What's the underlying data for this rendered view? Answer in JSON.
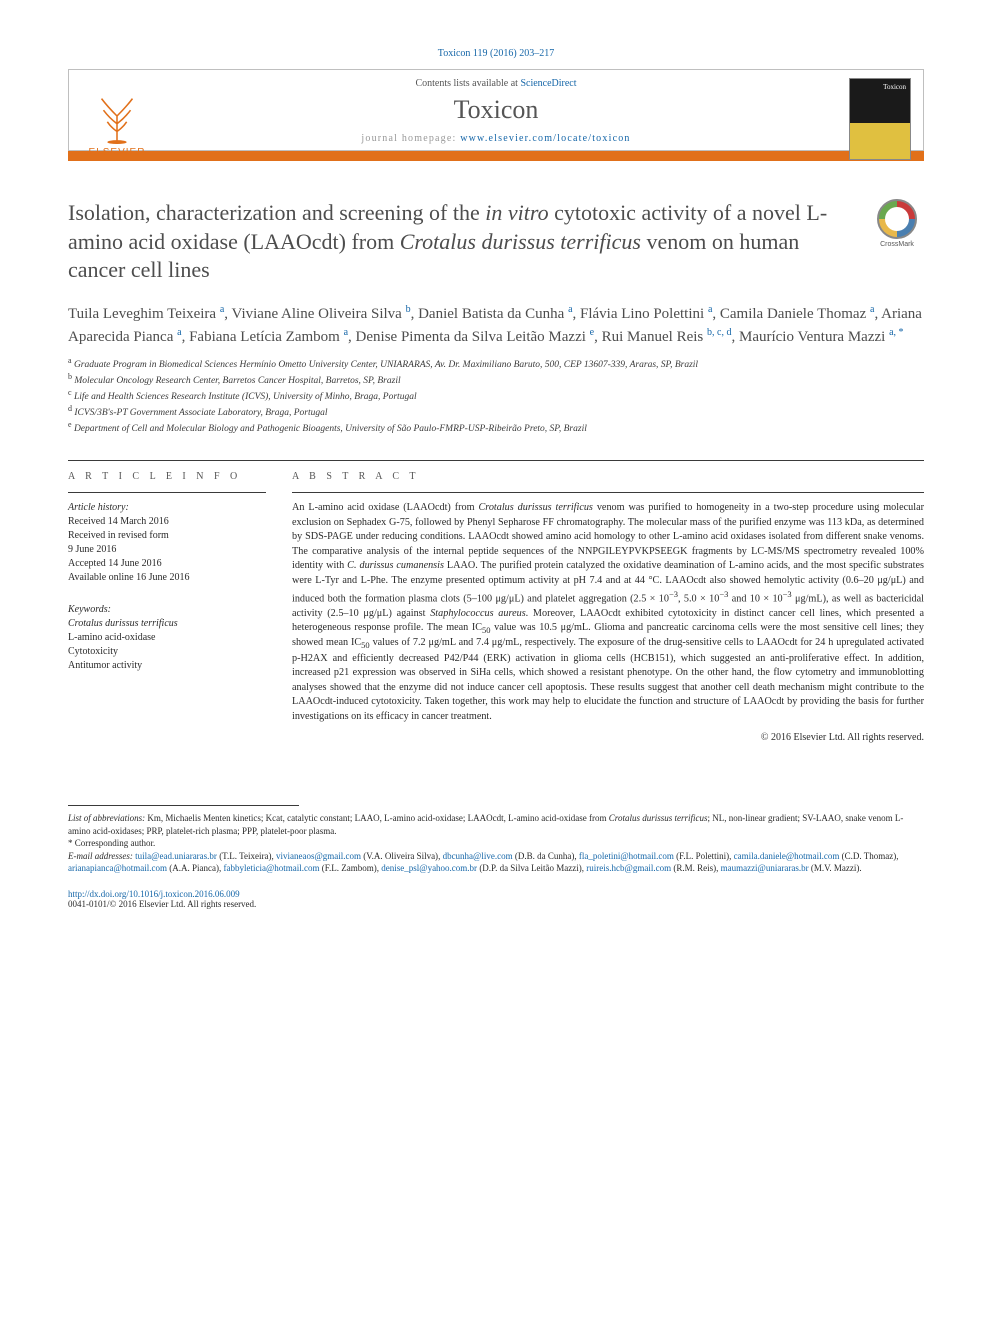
{
  "citation": "Toxicon 119 (2016) 203–217",
  "header": {
    "contents": "Contents lists available at ",
    "contents_link": "ScienceDirect",
    "journal": "Toxicon",
    "homepage_label": "journal homepage: ",
    "homepage_url": "www.elsevier.com/locate/toxicon",
    "publisher": "ELSEVIER",
    "cover_label": "Toxicon"
  },
  "crossmark_label": "CrossMark",
  "title_html": "Isolation, characterization and screening of the <span class='ital'>in vitro</span> cytotoxic activity of a novel L-amino acid oxidase (LAAOcdt) from <span class='ital'>Crotalus durissus terrificus</span> venom on human cancer cell lines",
  "authors_html": "Tuila Leveghim Teixeira <sup>a</sup>, Viviane Aline Oliveira Silva <sup>b</sup>, Daniel Batista da Cunha <sup>a</sup>, Flávia Lino Polettini <sup>a</sup>, Camila Daniele Thomaz <sup>a</sup>, Ariana Aparecida Pianca <sup>a</sup>, Fabiana Letícia Zambom <sup>a</sup>, Denise Pimenta da Silva Leitão Mazzi <sup>e</sup>, Rui Manuel Reis <sup>b, c, d</sup>, Maurício Ventura Mazzi <sup>a, *</sup>",
  "affiliations": [
    "<sup>a</sup> Graduate Program in Biomedical Sciences Hermínio Ometto University Center, UNIARARAS, Av. Dr. Maximiliano Baruto, 500, CEP 13607-339, Araras, SP, Brazil",
    "<sup>b</sup> Molecular Oncology Research Center, Barretos Cancer Hospital, Barretos, SP, Brazil",
    "<sup>c</sup> Life and Health Sciences Research Institute (ICVS), University of Minho, Braga, Portugal",
    "<sup>d</sup> ICVS/3B's-PT Government Associate Laboratory, Braga, Portugal",
    "<sup>e</sup> Department of Cell and Molecular Biology and Pathogenic Bioagents, University of São Paulo-FMRP-USP-Ribeirão Preto, SP, Brazil"
  ],
  "article_info": {
    "heading": "A R T I C L E   I N F O",
    "history_label": "Article history:",
    "history": [
      "Received 14 March 2016",
      "Received in revised form",
      "9 June 2016",
      "Accepted 14 June 2016",
      "Available online 16 June 2016"
    ],
    "keywords_label": "Keywords:",
    "keywords": [
      "Crotalus durissus terrificus",
      "L-amino acid-oxidase",
      "Cytotoxicity",
      "Antitumor activity"
    ]
  },
  "abstract": {
    "heading": "A B S T R A C T",
    "text_html": "An L-amino acid oxidase (LAAOcdt) from <i>Crotalus durissus terrificus</i> venom was purified to homogeneity in a two-step procedure using molecular exclusion on Sephadex G-75, followed by Phenyl Sepharose FF chromatography. The molecular mass of the purified enzyme was 113 kDa, as determined by SDS-PAGE under reducing conditions. LAAOcdt showed amino acid homology to other L-amino acid oxidases isolated from different snake venoms. The comparative analysis of the internal peptide sequences of the NNPGILEYPVKPSEEGK fragments by LC-MS/MS spectrometry revealed 100% identity with <i>C. durissus cumanensis</i> LAAO. The purified protein catalyzed the oxidative deamination of L-amino acids, and the most specific substrates were L-Tyr and L-Phe. The enzyme presented optimum activity at pH 7.4 and at 44 °C. LAAOcdt also showed hemolytic activity (0.6–20 μg/μL) and induced both the formation plasma clots (5–100 μg/μL) and platelet aggregation (2.5 × 10<sup>−3</sup>, 5.0 × 10<sup>−3</sup> and 10 × 10<sup>−3</sup> μg/mL), as well as bactericidal activity (2.5–10 μg/μL) against <i>Staphylococcus aureus</i>. Moreover, LAAOcdt exhibited cytotoxicity in distinct cancer cell lines, which presented a heterogeneous response profile. The mean IC<sub>50</sub> value was 10.5 μg/mL. Glioma and pancreatic carcinoma cells were the most sensitive cell lines; they showed mean IC<sub>50</sub> values of 7.2 μg/mL and 7.4 μg/mL, respectively. The exposure of the drug-sensitive cells to LAAOcdt for 24 h upregulated activated p-H2AX and efficiently decreased P42/P44 (ERK) activation in glioma cells (HCB151), which suggested an anti-proliferative effect. In addition, increased p21 expression was observed in SiHa cells, which showed a resistant phenotype. On the other hand, the flow cytometry and immunoblotting analyses showed that the enzyme did not induce cancer cell apoptosis. These results suggest that another cell death mechanism might contribute to the LAAOcdt-induced cytotoxicity. Taken together, this work may help to elucidate the function and structure of LAAOcdt by providing the basis for further investigations on its efficacy in cancer treatment.",
    "copyright": "© 2016 Elsevier Ltd. All rights reserved."
  },
  "footer": {
    "abbrev_html": "<span class='ital'>List of abbreviations:</span> Km, Michaelis Menten kinetics; Kcat, catalytic constant; LAAO, L-amino acid-oxidase; LAAOcdt, L-amino acid-oxidase from <span class='ital'>Crotalus durissus terrificus</span>; NL, non-linear gradient; SV-LAAO, snake venom L-amino acid-oxidases; PRP, platelet-rich plasma; PPP, platelet-poor plasma.",
    "corresponding": "* Corresponding author.",
    "email_label": "E-mail addresses:",
    "emails_html": "<a href='#'>tuila@ead.uniararas.br</a> <span class='email-name'>(T.L. Teixeira)</span>, <a href='#'>vivianeaos@gmail.com</a> <span class='email-name'>(V.A. Oliveira Silva)</span>, <a href='#'>dbcunha@live.com</a> <span class='email-name'>(D.B. da Cunha)</span>, <a href='#'>fla_poletini@hotmail.com</a> <span class='email-name'>(F.L. Polettini)</span>, <a href='#'>camila.daniele@hotmail.com</a> <span class='email-name'>(C.D. Thomaz)</span>, <a href='#'>arianapianca@hotmail.com</a> <span class='email-name'>(A.A. Pianca)</span>, <a href='#'>fabbyleticia@hotmail.com</a> <span class='email-name'>(F.L. Zambom)</span>, <a href='#'>denise_psl@yahoo.com.br</a> <span class='email-name'>(D.P. da Silva Leitão Mazzi)</span>, <a href='#'>ruireis.hcb@gmail.com</a> <span class='email-name'>(R.M. Reis)</span>, <a href='#'>maumazzi@uniararas.br</a> <span class='email-name'>(M.V. Mazzi)</span>.",
    "doi": "http://dx.doi.org/10.1016/j.toxicon.2016.06.009",
    "issn": "0041-0101/© 2016 Elsevier Ltd. All rights reserved."
  },
  "colors": {
    "link": "#1566a8",
    "accent": "#e1701a",
    "text": "#2a2a2a",
    "muted_text": "#555555"
  }
}
